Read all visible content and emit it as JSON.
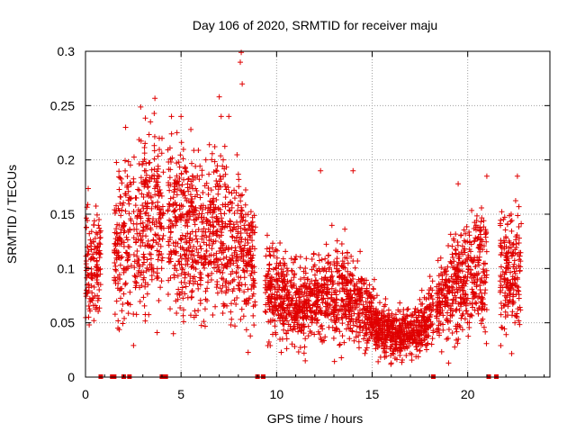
{
  "chart_data": {
    "type": "scatter",
    "title": "Day 106 of 2020, SRMTID for receiver maju",
    "xlabel": "GPS time / hours",
    "ylabel": "SRMTID / TECUs",
    "xlim": [
      0,
      24.3
    ],
    "ylim": [
      0,
      0.3
    ],
    "x_ticks": [
      0,
      5,
      10,
      15,
      20
    ],
    "x_tick_labels": [
      "0",
      "5",
      "10",
      "15",
      "20"
    ],
    "y_ticks": [
      0,
      0.05,
      0.1,
      0.15,
      0.2,
      0.25,
      0.3
    ],
    "y_tick_labels": [
      "0",
      "0.05",
      "0.1",
      "0.15",
      "0.2",
      "0.25",
      "0.3"
    ],
    "grid": true,
    "marker": "+",
    "color": "#e00000",
    "trend": [
      {
        "x": 0.0,
        "y": 0.1
      },
      {
        "x": 0.5,
        "y": 0.102
      },
      {
        "x": 1.5,
        "y": 0.115
      },
      {
        "x": 2.5,
        "y": 0.135
      },
      {
        "x": 3.5,
        "y": 0.145
      },
      {
        "x": 4.5,
        "y": 0.14
      },
      {
        "x": 5.5,
        "y": 0.135
      },
      {
        "x": 6.5,
        "y": 0.13
      },
      {
        "x": 7.5,
        "y": 0.125
      },
      {
        "x": 8.5,
        "y": 0.11
      },
      {
        "x": 9.5,
        "y": 0.085
      },
      {
        "x": 10.5,
        "y": 0.07
      },
      {
        "x": 11.5,
        "y": 0.065
      },
      {
        "x": 12.5,
        "y": 0.075
      },
      {
        "x": 13.5,
        "y": 0.08
      },
      {
        "x": 14.5,
        "y": 0.065
      },
      {
        "x": 15.5,
        "y": 0.042
      },
      {
        "x": 16.5,
        "y": 0.038
      },
      {
        "x": 17.5,
        "y": 0.045
      },
      {
        "x": 18.5,
        "y": 0.065
      },
      {
        "x": 19.5,
        "y": 0.085
      },
      {
        "x": 20.5,
        "y": 0.1
      },
      {
        "x": 21.5,
        "y": 0.09
      },
      {
        "x": 22.7,
        "y": 0.095
      }
    ],
    "data_segments": [
      [
        0.0,
        0.8
      ],
      [
        1.5,
        2.4
      ],
      [
        2.5,
        4.1
      ],
      [
        4.3,
        8.9
      ],
      [
        9.4,
        18.2
      ],
      [
        18.35,
        21.0
      ],
      [
        21.7,
        22.8
      ]
    ],
    "outliers": [
      {
        "x": 8.15,
        "y": 0.299
      },
      {
        "x": 8.1,
        "y": 0.29
      },
      {
        "x": 8.2,
        "y": 0.27
      },
      {
        "x": 7.0,
        "y": 0.258
      },
      {
        "x": 7.1,
        "y": 0.24
      },
      {
        "x": 7.5,
        "y": 0.24
      },
      {
        "x": 2.1,
        "y": 0.23
      },
      {
        "x": 4.5,
        "y": 0.24
      },
      {
        "x": 5.0,
        "y": 0.24
      },
      {
        "x": 3.4,
        "y": 0.235
      },
      {
        "x": 12.3,
        "y": 0.19
      },
      {
        "x": 14.0,
        "y": 0.19
      },
      {
        "x": 19.5,
        "y": 0.178
      },
      {
        "x": 21.0,
        "y": 0.185
      },
      {
        "x": 22.6,
        "y": 0.185
      },
      {
        "x": 11.5,
        "y": 0.015
      },
      {
        "x": 16.0,
        "y": 0.013
      },
      {
        "x": 4.6,
        "y": 0.04
      },
      {
        "x": 19.0,
        "y": 0.013
      }
    ],
    "gap_markers": [
      0.8,
      1.4,
      1.5,
      2.0,
      2.3,
      4.0,
      4.2,
      9.0,
      9.3,
      18.2,
      21.1,
      21.5
    ]
  }
}
